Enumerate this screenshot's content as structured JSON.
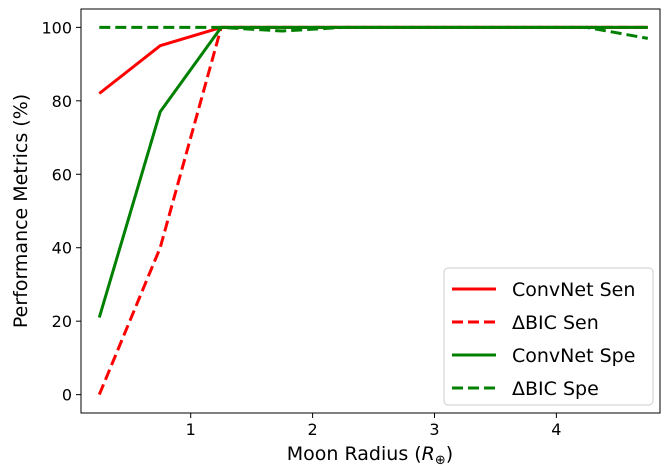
{
  "chart_data": {
    "type": "line",
    "title": "",
    "xlabel": "Moon Radius (",
    "xlabel_symbol": "R",
    "xlabel_subscript": "⊕",
    "xlabel_close": ")",
    "ylabel": "Performance Metrics (%)",
    "xlim": [
      0.1,
      4.85
    ],
    "ylim": [
      -5,
      105
    ],
    "xticks": [
      1,
      2,
      3,
      4
    ],
    "xtick_labels": [
      "1",
      "2",
      "3",
      "4"
    ],
    "yticks": [
      0,
      20,
      40,
      60,
      80,
      100
    ],
    "ytick_labels": [
      "0",
      "20",
      "40",
      "60",
      "80",
      "100"
    ],
    "grid": false,
    "legend_position": "lower right",
    "series": [
      {
        "name": "ConvNet Sen",
        "color": "#ff0000",
        "dashed": false,
        "x": [
          0.25,
          0.75,
          1.25,
          1.75,
          2.25,
          2.75,
          3.25,
          3.75,
          4.25,
          4.75
        ],
        "y": [
          82,
          95,
          100,
          100,
          100,
          100,
          100,
          100,
          100,
          100
        ]
      },
      {
        "name": "ΔBIC Sen",
        "color": "#ff0000",
        "dashed": true,
        "x": [
          0.25,
          0.75,
          1.25,
          1.75,
          2.25,
          2.75,
          3.25,
          3.75,
          4.25,
          4.75
        ],
        "y": [
          0,
          40,
          100,
          100,
          100,
          100,
          100,
          100,
          100,
          100
        ]
      },
      {
        "name": "ConvNet Spe",
        "color": "#008000",
        "dashed": false,
        "x": [
          0.25,
          0.75,
          1.25,
          1.75,
          2.25,
          2.75,
          3.25,
          3.75,
          4.25,
          4.75
        ],
        "y": [
          21,
          77,
          100,
          100,
          100,
          100,
          100,
          100,
          100,
          100
        ]
      },
      {
        "name": "ΔBIC Spe",
        "color": "#008000",
        "dashed": true,
        "x": [
          0.25,
          0.75,
          1.25,
          1.75,
          2.25,
          2.75,
          3.25,
          3.75,
          4.25,
          4.75
        ],
        "y": [
          100,
          100,
          100,
          99,
          100,
          100,
          100,
          100,
          100,
          97
        ]
      }
    ]
  }
}
